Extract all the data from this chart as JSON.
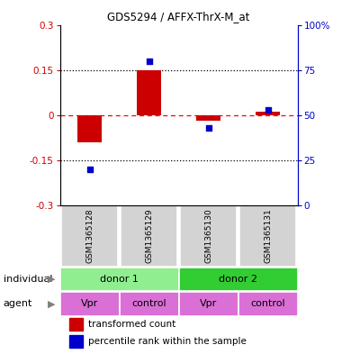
{
  "title": "GDS5294 / AFFX-ThrX-M_at",
  "samples": [
    "GSM1365128",
    "GSM1365129",
    "GSM1365130",
    "GSM1365131"
  ],
  "transformed_count": [
    -0.09,
    0.15,
    -0.02,
    0.01
  ],
  "percentile_rank_raw": [
    20,
    80,
    43,
    53
  ],
  "ylim_left": [
    -0.3,
    0.3
  ],
  "ylim_right": [
    0,
    100
  ],
  "yticks_left": [
    -0.3,
    -0.15,
    0,
    0.15,
    0.3
  ],
  "yticks_right": [
    0,
    25,
    50,
    75,
    100
  ],
  "ytick_labels_left": [
    "-0.3",
    "-0.15",
    "0",
    "0.15",
    "0.3"
  ],
  "ytick_labels_right": [
    "0",
    "25",
    "50",
    "75",
    "100%"
  ],
  "individual_colors": [
    "#90EE90",
    "#32CD32"
  ],
  "agent_color": "#DA70D6",
  "bar_color": "#CC0000",
  "dot_color": "#0000CC",
  "legend_bar_color": "#CC0000",
  "legend_dot_color": "#0000CC",
  "background_color": "#ffffff",
  "left_axis_color": "#CC0000",
  "right_axis_color": "#0000CC",
  "sample_box_color": "#d3d3d3",
  "bar_width": 0.4,
  "dot_size": 22
}
